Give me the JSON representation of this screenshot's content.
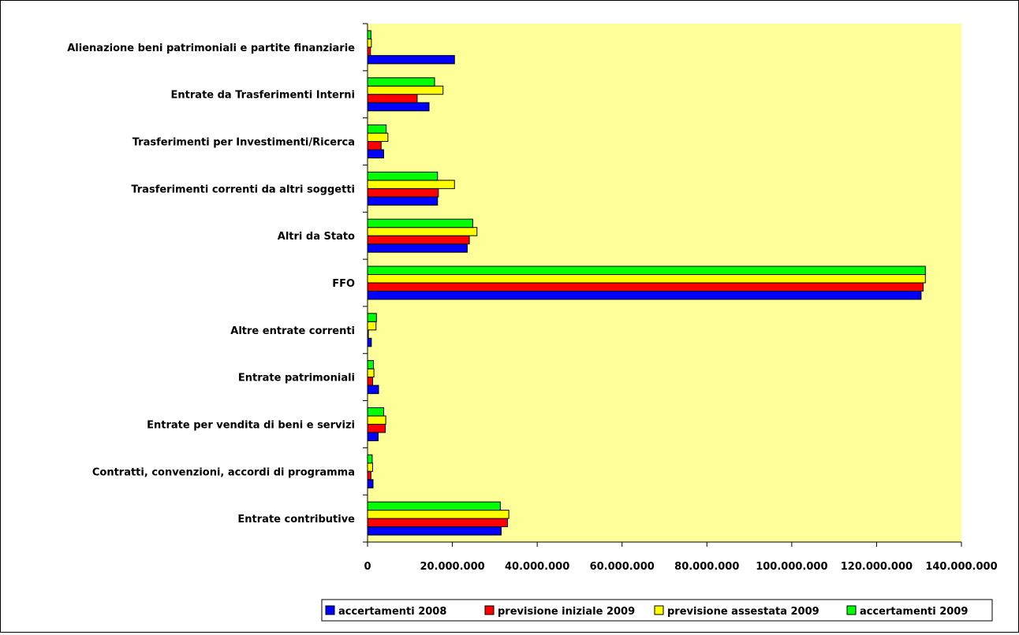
{
  "chart_data": {
    "type": "bar",
    "orientation": "horizontal",
    "title": "",
    "xlabel": "",
    "ylabel": "",
    "xlim": [
      0,
      140000000
    ],
    "x_ticks": [
      0,
      20000000,
      40000000,
      60000000,
      80000000,
      100000000,
      120000000,
      140000000
    ],
    "x_tick_labels": [
      "0",
      "20.000.000",
      "40.000.000",
      "60.000.000",
      "80.000.000",
      "100.000.000",
      "120.000.000",
      "140.000.000"
    ],
    "categories": [
      "Alienazione beni patrimoniali e partite finanziarie",
      "Entrate da Trasferimenti Interni",
      "Trasferimenti per Investimenti/Ricerca",
      "Trasferimenti correnti da altri soggetti",
      "Altri da Stato",
      "FFO",
      "Altre entrate correnti",
      "Entrate patrimoniali",
      "Entrate per vendita di beni e servizi",
      "Contratti, convenzioni, accordi di programma",
      "Entrate contributive"
    ],
    "series": [
      {
        "name": "accertamenti 2008",
        "color": "#0000ff",
        "values": [
          20500000,
          14500000,
          3800000,
          16500000,
          23500000,
          130500000,
          900000,
          2600000,
          2500000,
          1300000,
          31500000
        ]
      },
      {
        "name": "previsione iniziale 2009",
        "color": "#ff0000",
        "values": [
          700000,
          11700000,
          3200000,
          16700000,
          24000000,
          131000000,
          200000,
          1200000,
          4200000,
          800000,
          33000000
        ]
      },
      {
        "name": "previsione assestata 2009",
        "color": "#ffff00",
        "values": [
          900000,
          17800000,
          4800000,
          20500000,
          25800000,
          131500000,
          2000000,
          1500000,
          4300000,
          1200000,
          33300000
        ]
      },
      {
        "name": "accertamenti 2009",
        "color": "#00ff00",
        "values": [
          800000,
          15800000,
          4400000,
          16500000,
          24800000,
          131500000,
          2100000,
          1400000,
          3800000,
          1100000,
          31300000
        ]
      }
    ],
    "grid": false,
    "legend_position": "bottom",
    "plot_background": "#ffff99"
  }
}
